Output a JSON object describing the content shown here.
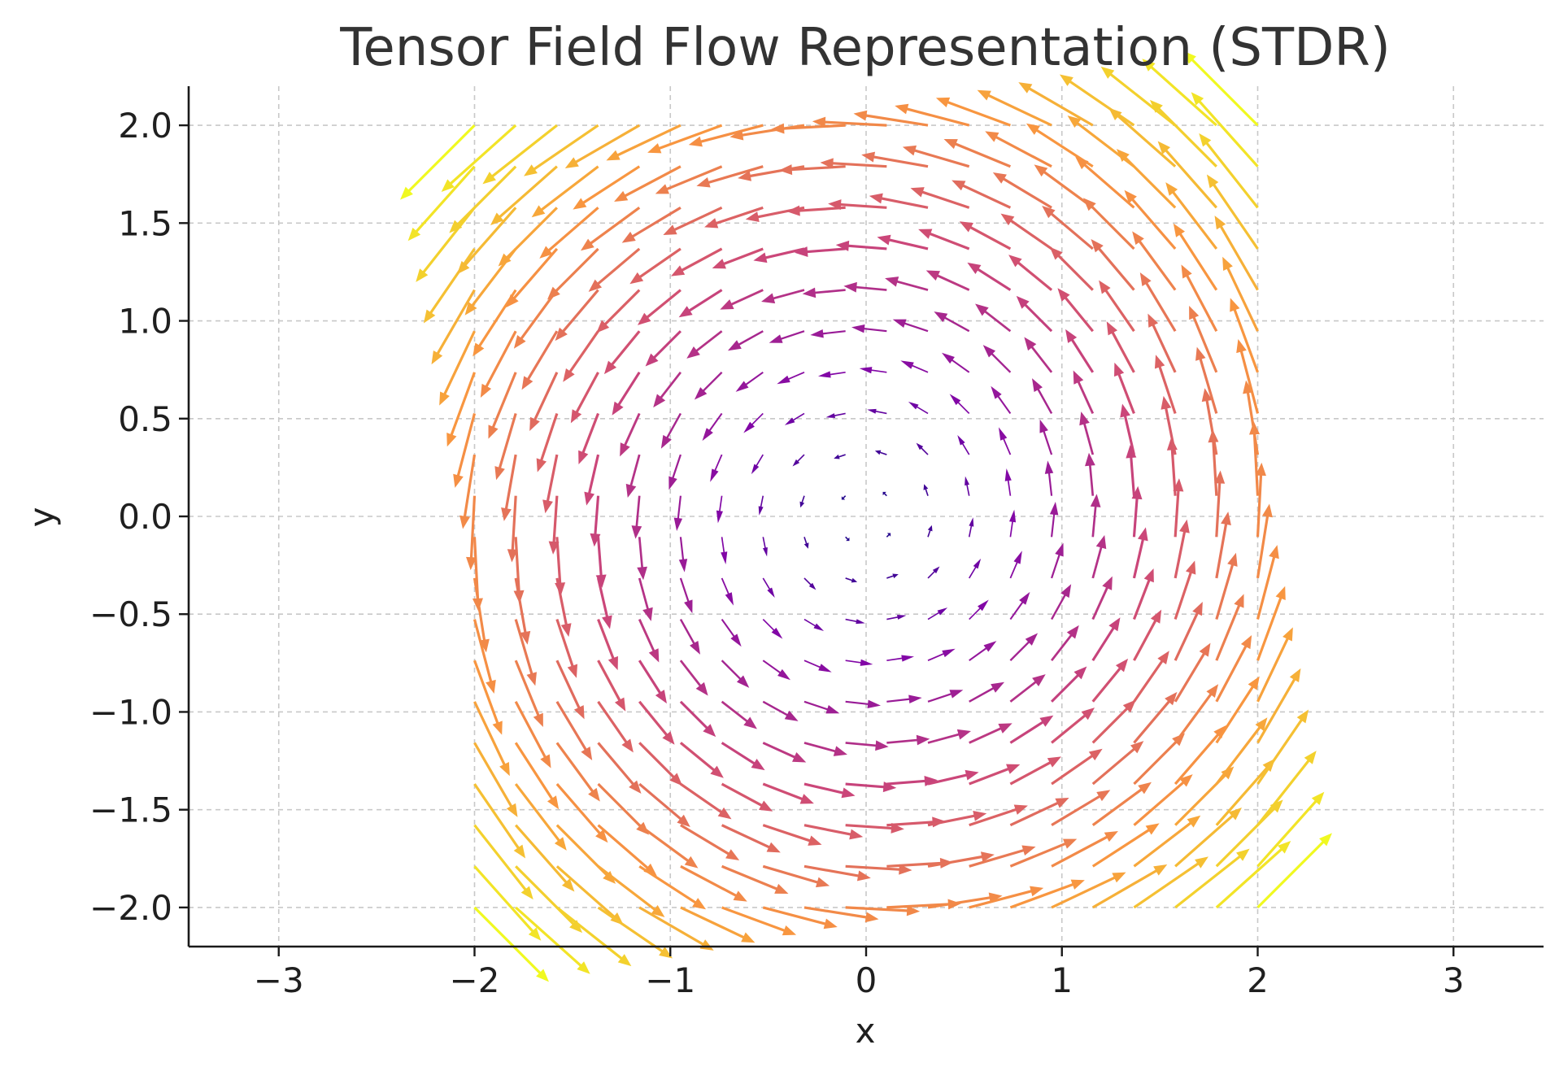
{
  "chart_data": {
    "type": "quiver",
    "title": "Tensor Field Flow Representation (STDR)",
    "xlabel": "x",
    "ylabel": "y",
    "xlim": [
      -3.46,
      3.46
    ],
    "ylim": [
      -2.2,
      2.2
    ],
    "grid": true,
    "grid_style": "dashed",
    "x_ticks": [
      -3,
      -2,
      -1,
      0,
      1,
      2,
      3
    ],
    "y_ticks": [
      -2.0,
      -1.5,
      -1.0,
      -0.5,
      0.0,
      0.5,
      1.0,
      1.5,
      2.0
    ],
    "x_tick_labels": [
      "−3",
      "−2",
      "−1",
      "0",
      "1",
      "2",
      "3"
    ],
    "y_tick_labels": [
      "−2.0",
      "−1.5",
      "−1.0",
      "−0.5",
      "0.0",
      "0.5",
      "1.0",
      "1.5",
      "2.0"
    ],
    "grid_range": [
      -2.0,
      2.0
    ],
    "grid_points_per_axis": 20,
    "field": "rotational (u = -y, v = x), counter-clockwise",
    "colormap": "plasma",
    "colormap_stops": [
      "#0d0887",
      "#7e03a8",
      "#cc4778",
      "#f89540",
      "#f0f921"
    ],
    "colorscale_min": 0.0,
    "colorscale_max": 2.83
  }
}
